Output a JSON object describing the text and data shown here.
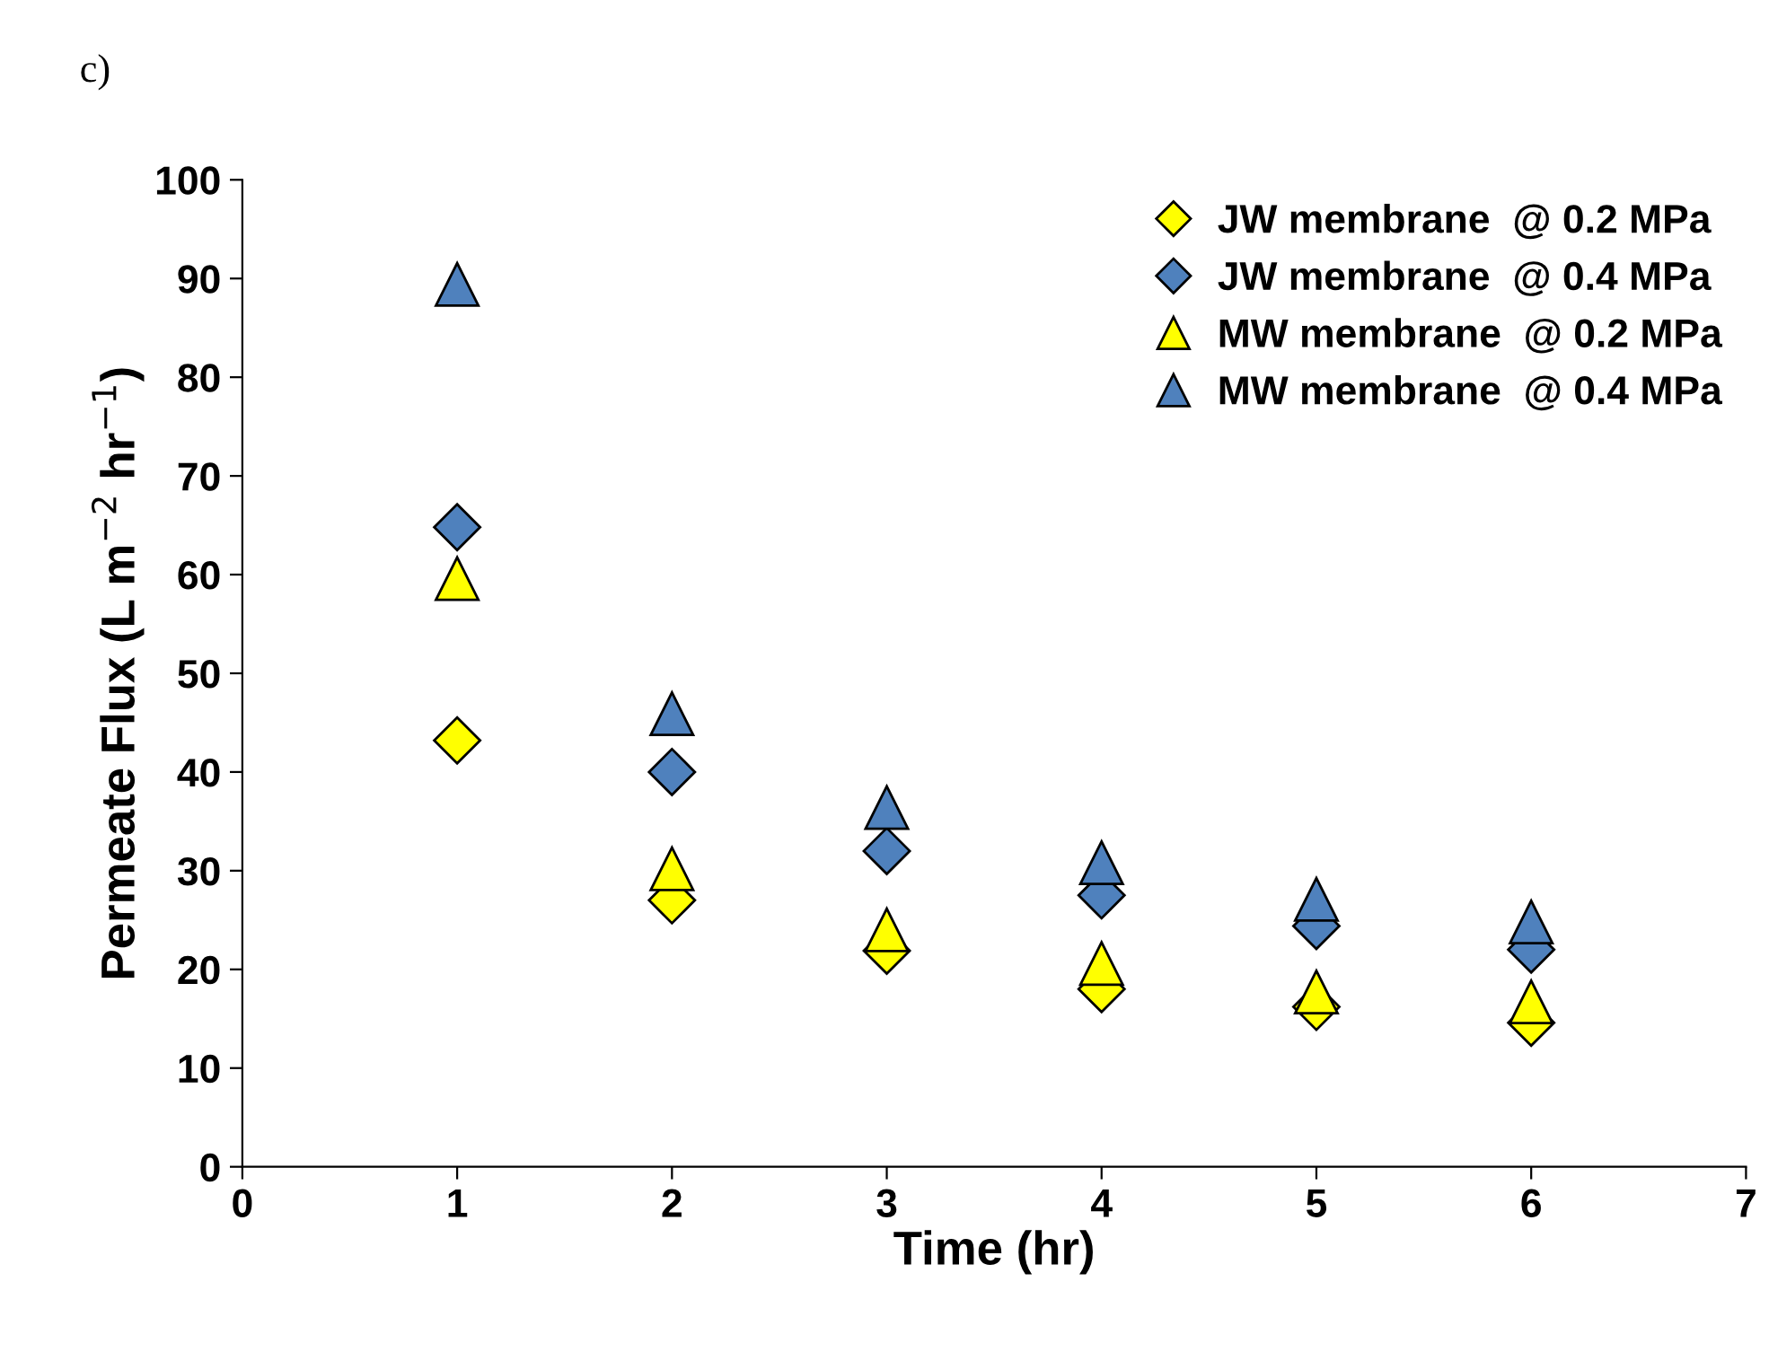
{
  "chart_data": {
    "type": "scatter",
    "xlabel": "Time (hr)",
    "ylabel": "Permeate Flux (L m$^{−2}$ hr$^{−1}$)",
    "annotations": [
      "c)"
    ],
    "x": [
      1,
      2,
      3,
      4,
      5,
      6
    ],
    "series": [
      {
        "name": "JW membrane  @ 0.2 MPa",
        "color": "#ffff00",
        "marker": "diamond",
        "values": [
          43.2,
          27,
          21.9,
          18,
          16.2,
          14.6
        ]
      },
      {
        "name": "JW membrane  @ 0.4 MPa",
        "color": "#4f81bd",
        "marker": "diamond",
        "values": [
          64.8,
          40,
          32,
          27.5,
          24.4,
          22
        ]
      },
      {
        "name": "MW membrane  @ 0.2 MPa",
        "color": "#ffff00",
        "marker": "triangle",
        "values": [
          59.6,
          30.2,
          24,
          20.6,
          17.7,
          16.7
        ]
      },
      {
        "name": "MW membrane  @ 0.4 MPa",
        "color": "#4f81bd",
        "marker": "triangle",
        "values": [
          89.4,
          45.9,
          36.4,
          30.8,
          27.1,
          24.8
        ]
      }
    ],
    "xlim": [
      0,
      7
    ],
    "xticks": [
      0,
      1,
      2,
      3,
      4,
      5,
      6,
      7
    ],
    "ylim": [
      0,
      100
    ],
    "yticks": [
      0,
      10,
      20,
      30,
      40,
      50,
      60,
      70,
      80,
      90,
      100
    ],
    "grid": false,
    "legend": "top right"
  }
}
